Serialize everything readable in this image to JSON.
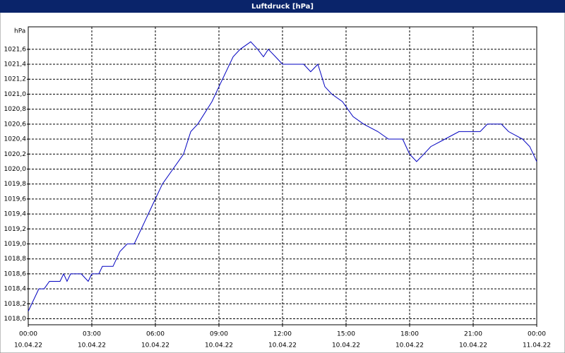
{
  "chart_data": {
    "type": "line",
    "title": "Luftdruck [hPa]",
    "y_label": "hPa",
    "x": [
      0,
      0.5,
      0.75,
      1,
      1.5,
      1.67,
      1.83,
      2,
      2.5,
      2.83,
      3,
      3.33,
      3.5,
      4,
      4.33,
      4.67,
      5,
      5.5,
      5.83,
      6.33,
      6.83,
      7.33,
      7.67,
      8,
      8.67,
      9,
      9.67,
      10,
      10.5,
      10.83,
      11.1,
      11.33,
      11.67,
      12,
      13,
      13.33,
      13.67,
      14,
      14.33,
      14.83,
      15.33,
      15.83,
      16.5,
      17,
      17.67,
      18,
      18.33,
      18.67,
      19,
      19.67,
      20.33,
      21.33,
      21.67,
      22.33,
      22.67,
      23.33,
      23.67,
      24
    ],
    "series": [
      {
        "name": "Luftdruck",
        "color": "#0000c0",
        "values": [
          1018.1,
          1018.4,
          1018.4,
          1018.5,
          1018.5,
          1018.6,
          1018.5,
          1018.6,
          1018.6,
          1018.5,
          1018.6,
          1018.6,
          1018.7,
          1018.7,
          1018.9,
          1019.0,
          1019.0,
          1019.3,
          1019.5,
          1019.8,
          1020.0,
          1020.2,
          1020.5,
          1020.6,
          1020.9,
          1021.1,
          1021.5,
          1021.6,
          1021.7,
          1021.6,
          1021.5,
          1021.6,
          1021.5,
          1021.4,
          1021.4,
          1021.3,
          1021.4,
          1021.1,
          1021.0,
          1020.9,
          1020.7,
          1020.6,
          1020.5,
          1020.4,
          1020.4,
          1020.2,
          1020.1,
          1020.2,
          1020.3,
          1020.4,
          1020.5,
          1020.5,
          1020.6,
          1020.6,
          1020.5,
          1020.4,
          1020.3,
          1020.1
        ]
      }
    ],
    "xlim": [
      0,
      24
    ],
    "xticks": [
      {
        "value": 0,
        "label": "00:00"
      },
      {
        "value": 3,
        "label": "03:00"
      },
      {
        "value": 6,
        "label": "06:00"
      },
      {
        "value": 9,
        "label": "09:00"
      },
      {
        "value": 12,
        "label": "12:00"
      },
      {
        "value": 15,
        "label": "15:00"
      },
      {
        "value": 18,
        "label": "18:00"
      },
      {
        "value": 21,
        "label": "21:00"
      },
      {
        "value": 24,
        "label": "00:00"
      }
    ],
    "xtick_dates": [
      "10.04.22",
      "10.04.22",
      "10.04.22",
      "10.04.22",
      "10.04.22",
      "10.04.22",
      "10.04.22",
      "10.04.22",
      "11.04.22"
    ],
    "ylim": [
      1017.92,
      1021.9
    ],
    "yticks": [
      {
        "value": 1018.0,
        "label": "1018,0"
      },
      {
        "value": 1018.2,
        "label": "1018,2"
      },
      {
        "value": 1018.4,
        "label": "1018,4"
      },
      {
        "value": 1018.6,
        "label": "1018,6"
      },
      {
        "value": 1018.8,
        "label": "1018,8"
      },
      {
        "value": 1019.0,
        "label": "1019,0"
      },
      {
        "value": 1019.2,
        "label": "1019,2"
      },
      {
        "value": 1019.4,
        "label": "1019,4"
      },
      {
        "value": 1019.6,
        "label": "1019,6"
      },
      {
        "value": 1019.8,
        "label": "1019,8"
      },
      {
        "value": 1020.0,
        "label": "1020,0"
      },
      {
        "value": 1020.2,
        "label": "1020,2"
      },
      {
        "value": 1020.4,
        "label": "1020,4"
      },
      {
        "value": 1020.6,
        "label": "1020,6"
      },
      {
        "value": 1020.8,
        "label": "1020,8"
      },
      {
        "value": 1021.0,
        "label": "1021,0"
      },
      {
        "value": 1021.2,
        "label": "1021,2"
      },
      {
        "value": 1021.4,
        "label": "1021,4"
      },
      {
        "value": 1021.6,
        "label": "1021,6"
      }
    ],
    "grid": true
  }
}
